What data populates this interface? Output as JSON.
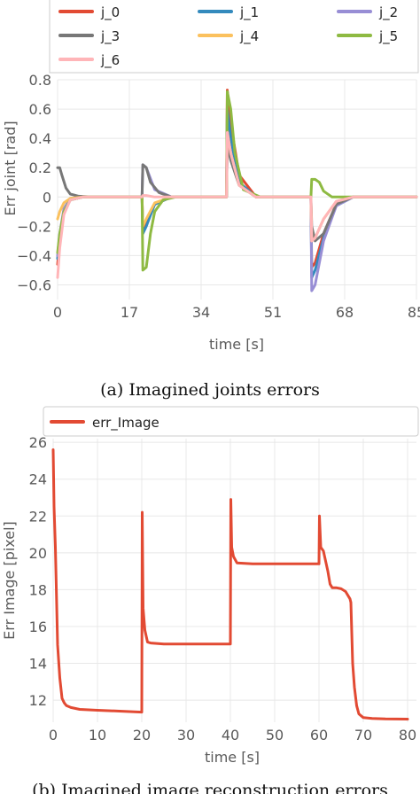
{
  "chart_data": [
    {
      "type": "line",
      "caption": "(a) Imagined joints errors",
      "xlabel": "time [s]",
      "ylabel": "Err joint [rad]",
      "xlim": [
        0,
        85
      ],
      "ylim": [
        -0.7,
        0.8
      ],
      "xticks": [
        0,
        17,
        34,
        51,
        68,
        85
      ],
      "xtick_labels": [
        "0",
        "17",
        "34",
        "51",
        "68",
        "85"
      ],
      "yticks": [
        -0.6,
        -0.4,
        -0.2,
        0,
        0.2,
        0.4,
        0.6,
        0.8
      ],
      "ytick_labels": [
        "−0.6",
        "−0.4",
        "−0.2",
        "0",
        "0.2",
        "0.4",
        "0.6",
        "0.8"
      ],
      "grid": true,
      "legend_position": "top",
      "series": [
        {
          "name": "j_0",
          "color": "#e24a33",
          "x": [
            0,
            0.5,
            1.5,
            3,
            6,
            20,
            20.2,
            21,
            23,
            27,
            40,
            40.2,
            41,
            43,
            47,
            60,
            60.2,
            61,
            63,
            66,
            70,
            85
          ],
          "y": [
            -0.46,
            -0.3,
            -0.1,
            -0.02,
            0,
            0,
            -0.22,
            -0.18,
            -0.05,
            0,
            0,
            0.73,
            0.5,
            0.15,
            0,
            0,
            -0.48,
            -0.45,
            -0.25,
            -0.05,
            0,
            0
          ]
        },
        {
          "name": "j_1",
          "color": "#348abd",
          "x": [
            0,
            0.5,
            1.5,
            3,
            6,
            20,
            20.2,
            21,
            23,
            27,
            40,
            40.2,
            41,
            43,
            47,
            60,
            60.2,
            61,
            63,
            66,
            70,
            85
          ],
          "y": [
            -0.42,
            -0.28,
            -0.1,
            -0.02,
            0,
            0,
            -0.25,
            -0.2,
            -0.05,
            0,
            0,
            0.6,
            0.4,
            0.1,
            0,
            0,
            -0.55,
            -0.5,
            -0.28,
            -0.06,
            0,
            0
          ]
        },
        {
          "name": "j_2",
          "color": "#988ed5",
          "x": [
            0,
            0.5,
            1.5,
            3,
            6,
            20,
            20.2,
            21,
            23,
            27,
            40,
            40.2,
            41,
            43,
            47,
            60,
            60.2,
            61,
            63,
            66,
            70,
            85
          ],
          "y": [
            -0.4,
            -0.25,
            -0.08,
            -0.01,
            0,
            0,
            0.22,
            0.2,
            0.05,
            0,
            0,
            0.4,
            0.3,
            0.08,
            0,
            0,
            -0.64,
            -0.6,
            -0.3,
            -0.06,
            0,
            0
          ]
        },
        {
          "name": "j_3",
          "color": "#777777",
          "x": [
            0,
            0.5,
            1,
            2,
            3,
            5,
            8,
            20,
            20.2,
            21,
            22,
            24,
            27,
            40,
            40.2,
            41,
            43,
            47,
            60,
            60.2,
            61,
            63,
            66,
            70,
            85
          ],
          "y": [
            0.2,
            0.2,
            0.15,
            0.06,
            0.02,
            0.005,
            0,
            0,
            0.22,
            0.2,
            0.1,
            0.03,
            0,
            0,
            0.36,
            0.25,
            0.08,
            0,
            0,
            -0.2,
            -0.3,
            -0.25,
            -0.05,
            0,
            0
          ]
        },
        {
          "name": "j_4",
          "color": "#fbc15e",
          "x": [
            0,
            0.5,
            1.5,
            3,
            6,
            20,
            20.2,
            21,
            23,
            27,
            40,
            40.2,
            41,
            43,
            47,
            60,
            60.2,
            61,
            63,
            66,
            70,
            85
          ],
          "y": [
            -0.15,
            -0.1,
            -0.04,
            -0.01,
            0,
            0,
            -0.2,
            -0.15,
            -0.04,
            0,
            0,
            0.45,
            0.3,
            0.08,
            0,
            0,
            -0.3,
            -0.28,
            -0.15,
            -0.03,
            0,
            0
          ]
        },
        {
          "name": "j_5",
          "color": "#8eba42",
          "x": [
            0,
            0.5,
            1.5,
            3,
            6,
            20,
            20.2,
            21,
            22,
            23,
            25,
            28,
            40,
            40.2,
            41,
            42,
            44,
            48,
            60,
            60.2,
            61,
            62,
            63,
            65,
            85
          ],
          "y": [
            -0.38,
            -0.25,
            -0.1,
            -0.02,
            0,
            0,
            -0.5,
            -0.48,
            -0.25,
            -0.1,
            -0.02,
            0,
            0,
            0.72,
            0.6,
            0.3,
            0.05,
            0,
            0,
            0.12,
            0.12,
            0.1,
            0.04,
            0,
            0
          ]
        },
        {
          "name": "j_6",
          "color": "#ffb5b8",
          "x": [
            0,
            0.5,
            1.5,
            3,
            6,
            20,
            20.2,
            21,
            23,
            27,
            40,
            40.2,
            41,
            43,
            47,
            60,
            60.2,
            61,
            63,
            66,
            70,
            85
          ],
          "y": [
            -0.55,
            -0.35,
            -0.12,
            -0.02,
            0,
            0,
            0.01,
            0.01,
            0,
            0,
            0,
            0.44,
            0.3,
            0.08,
            0,
            0,
            -0.3,
            -0.28,
            -0.15,
            -0.03,
            0,
            0
          ]
        }
      ]
    },
    {
      "type": "line",
      "caption": "(b) Imagined image reconstruction errors",
      "xlabel": "time [s]",
      "ylabel": "Err Image [pixel]",
      "xlim": [
        0,
        82
      ],
      "ylim": [
        10.8,
        26.2
      ],
      "xticks": [
        0,
        10,
        20,
        30,
        40,
        50,
        60,
        70,
        80
      ],
      "xtick_labels": [
        "0",
        "10",
        "20",
        "30",
        "40",
        "50",
        "60",
        "70",
        "80"
      ],
      "yticks": [
        12,
        14,
        16,
        18,
        20,
        22,
        24,
        26
      ],
      "ytick_labels": [
        "12",
        "14",
        "16",
        "18",
        "20",
        "22",
        "24",
        "26"
      ],
      "grid": true,
      "legend_position": "top-left",
      "series": [
        {
          "name": "err_Image",
          "color": "#e24a33",
          "x": [
            0,
            0.2,
            0.5,
            1,
            1.5,
            2,
            2.5,
            3,
            4,
            6,
            10,
            15,
            20,
            20.1,
            20.3,
            20.7,
            21.3,
            22,
            25,
            30,
            40,
            40.1,
            40.3,
            40.7,
            41.5,
            45,
            50,
            60,
            60.1,
            60.4,
            61,
            62,
            62.5,
            63,
            64,
            65,
            66,
            67,
            67.2,
            67.6,
            68,
            68.5,
            69,
            70,
            72,
            75,
            80
          ],
          "y": [
            25.6,
            22.5,
            20.3,
            15,
            13.2,
            12.1,
            11.85,
            11.7,
            11.6,
            11.5,
            11.45,
            11.4,
            11.35,
            22.2,
            17,
            15.8,
            15.15,
            15.1,
            15.05,
            15.05,
            15.05,
            22.9,
            20.3,
            19.8,
            19.45,
            19.4,
            19.4,
            19.4,
            22.0,
            20.3,
            20.1,
            19.0,
            18.3,
            18.1,
            18.1,
            18.05,
            17.9,
            17.5,
            17.3,
            14,
            12.7,
            11.7,
            11.25,
            11.05,
            11.0,
            10.98,
            10.97
          ]
        }
      ]
    }
  ]
}
